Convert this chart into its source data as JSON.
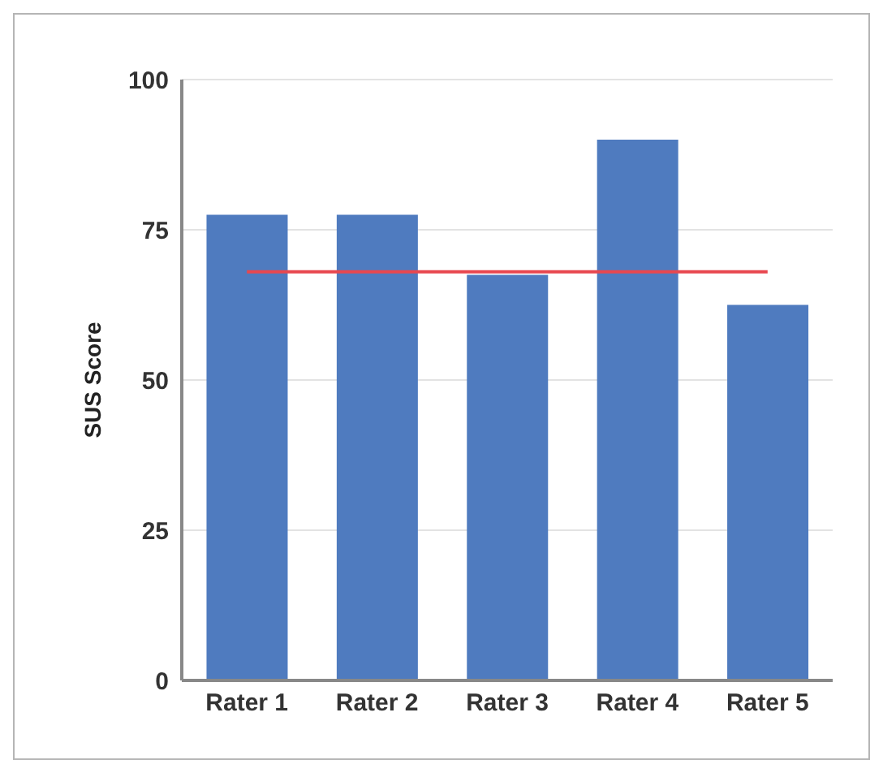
{
  "chart_data": {
    "type": "bar",
    "ylabel": "SUS Score",
    "categories": [
      "Rater 1",
      "Rater 2",
      "Rater 3",
      "Rater 4",
      "Rater 5"
    ],
    "series": [
      {
        "color": "#4f7bbf",
        "values": [
          77.5,
          77.5,
          67.5,
          90,
          62.5
        ]
      },
      {
        "type": "line",
        "color": "#e8474f",
        "values": [
          68,
          68,
          68,
          68,
          68
        ]
      }
    ],
    "ylim": [
      0,
      100
    ],
    "yticks": [
      0,
      25,
      50,
      75,
      100
    ],
    "grid": "y",
    "marker": "none"
  }
}
